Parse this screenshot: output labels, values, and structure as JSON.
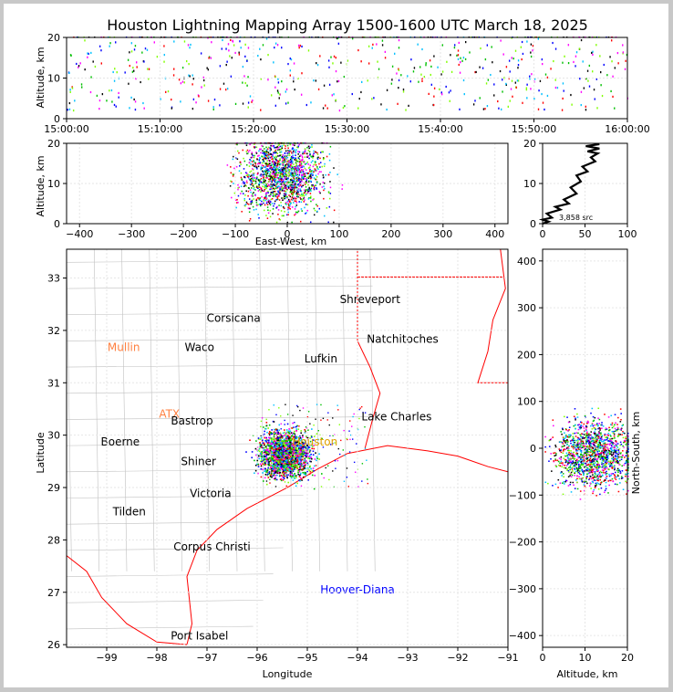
{
  "title": "Houston Lightning Mapping Array 1500-1600 UTC March 18, 2025",
  "colors": {
    "background": "#c8c8c8",
    "map_boundary": "#ff0000",
    "county_lines": "#c0c0c0",
    "grid": "#e6e6e6",
    "source_colors": [
      "#0000ff",
      "#00c0ff",
      "#00c000",
      "#80ff00",
      "#ff0000",
      "#ff00ff",
      "#000000"
    ]
  },
  "chart_data": [
    {
      "id": "time_altitude",
      "type": "scatter",
      "xlabel": "",
      "ylabel": "Altitude, km",
      "xticks": [
        "15:00:00",
        "15:10:00",
        "15:20:00",
        "15:30:00",
        "15:40:00",
        "15:50:00",
        "16:00:00"
      ],
      "xlim_minutes": [
        0,
        60
      ],
      "ylim": [
        0,
        20
      ],
      "yticks": [
        0,
        10,
        20
      ],
      "grid": true
    },
    {
      "id": "eastwest_altitude",
      "type": "scatter",
      "xlabel": "East-West, km",
      "ylabel": "Altitude, km",
      "xlim": [
        -425,
        425
      ],
      "xticks": [
        -400,
        -300,
        -200,
        -100,
        0,
        100,
        200,
        300,
        400
      ],
      "ylim": [
        0,
        20
      ],
      "yticks": [
        0,
        10,
        20
      ],
      "cluster": {
        "x_center": -10,
        "x_spread": 40,
        "z_center": 12
      },
      "grid": true
    },
    {
      "id": "altitude_histogram",
      "type": "line",
      "xlim": [
        0,
        100
      ],
      "xticks": [
        0,
        50,
        100
      ],
      "ylim": [
        0,
        20
      ],
      "yticks": [
        0,
        10,
        20
      ],
      "annotation": "3,858 src",
      "profile": [
        [
          0,
          0
        ],
        [
          2,
          0.5
        ],
        [
          4,
          1
        ],
        [
          6,
          1.5
        ],
        [
          10,
          2.5
        ],
        [
          16,
          3.5
        ],
        [
          20,
          4.2
        ],
        [
          26,
          5
        ],
        [
          30,
          6
        ],
        [
          35,
          7.5
        ],
        [
          38,
          9
        ],
        [
          40,
          10.5
        ],
        [
          45,
          12
        ],
        [
          48,
          13
        ],
        [
          52,
          14.2
        ],
        [
          57,
          15.5
        ],
        [
          62,
          16.5
        ],
        [
          60,
          17.5
        ],
        [
          58,
          18
        ],
        [
          62,
          18.7
        ],
        [
          56,
          19.3
        ],
        [
          62,
          19.8
        ]
      ]
    },
    {
      "id": "planview_map",
      "type": "scatter",
      "xlabel": "Longitude",
      "ylabel": "Latitude",
      "xlim": [
        -99.8,
        -91
      ],
      "ylim": [
        25.95,
        33.55
      ],
      "xticks": [
        -99,
        -98,
        -97,
        -96,
        -95,
        -94,
        -93,
        -92,
        -91
      ],
      "yticks": [
        26,
        27,
        28,
        29,
        30,
        31,
        32,
        33
      ],
      "cluster": {
        "lon_center": -95.45,
        "lat_center": 29.65,
        "lon_spread": 0.45,
        "lat_spread": 0.4
      },
      "cities": [
        {
          "name": "Shreveport",
          "lon": -93.75,
          "lat": 32.52,
          "color": "#000000"
        },
        {
          "name": "Corsicana",
          "lon": -96.47,
          "lat": 32.16,
          "color": "#000000"
        },
        {
          "name": "Natchitoches",
          "lon": -93.1,
          "lat": 31.76,
          "color": "#000000"
        },
        {
          "name": "Mullin",
          "lon": -98.66,
          "lat": 31.61,
          "color": "#ff8040"
        },
        {
          "name": "Waco",
          "lon": -97.15,
          "lat": 31.61,
          "color": "#000000"
        },
        {
          "name": "Lufkin",
          "lon": -94.73,
          "lat": 31.39,
          "color": "#000000"
        },
        {
          "name": "ATX",
          "lon": -97.75,
          "lat": 30.33,
          "color": "#ff8040"
        },
        {
          "name": "Bastrop",
          "lon": -97.3,
          "lat": 30.2,
          "color": "#000000"
        },
        {
          "name": "Lake Charles",
          "lon": -93.22,
          "lat": 30.28,
          "color": "#000000"
        },
        {
          "name": "Boerne",
          "lon": -98.73,
          "lat": 29.8,
          "color": "#000000"
        },
        {
          "name": "Houston",
          "lon": -94.85,
          "lat": 29.8,
          "color": "#e0a000"
        },
        {
          "name": "Shiner",
          "lon": -97.17,
          "lat": 29.43,
          "color": "#000000"
        },
        {
          "name": "Victoria",
          "lon": -96.93,
          "lat": 28.82,
          "color": "#000000"
        },
        {
          "name": "Tilden",
          "lon": -98.55,
          "lat": 28.47,
          "color": "#000000"
        },
        {
          "name": "Corpus Christi",
          "lon": -96.9,
          "lat": 27.8,
          "color": "#000000"
        },
        {
          "name": "Hoover-Diana",
          "lon": -94.0,
          "lat": 26.98,
          "color": "#0000ff"
        },
        {
          "name": "Port Isabel",
          "lon": -97.15,
          "lat": 26.1,
          "color": "#000000"
        }
      ],
      "grid": true
    },
    {
      "id": "altitude_northsouth",
      "type": "scatter",
      "xlabel": "Altitude, km",
      "ylabel": "North-South, km",
      "xlim": [
        0,
        20
      ],
      "xticks": [
        0,
        10,
        20
      ],
      "ylim": [
        -425,
        425
      ],
      "yticks": [
        -400,
        -300,
        -200,
        -100,
        0,
        100,
        200,
        300,
        400
      ],
      "cluster": {
        "y_center": -10,
        "y_spread": 35,
        "z_center": 12
      },
      "grid": true
    }
  ]
}
